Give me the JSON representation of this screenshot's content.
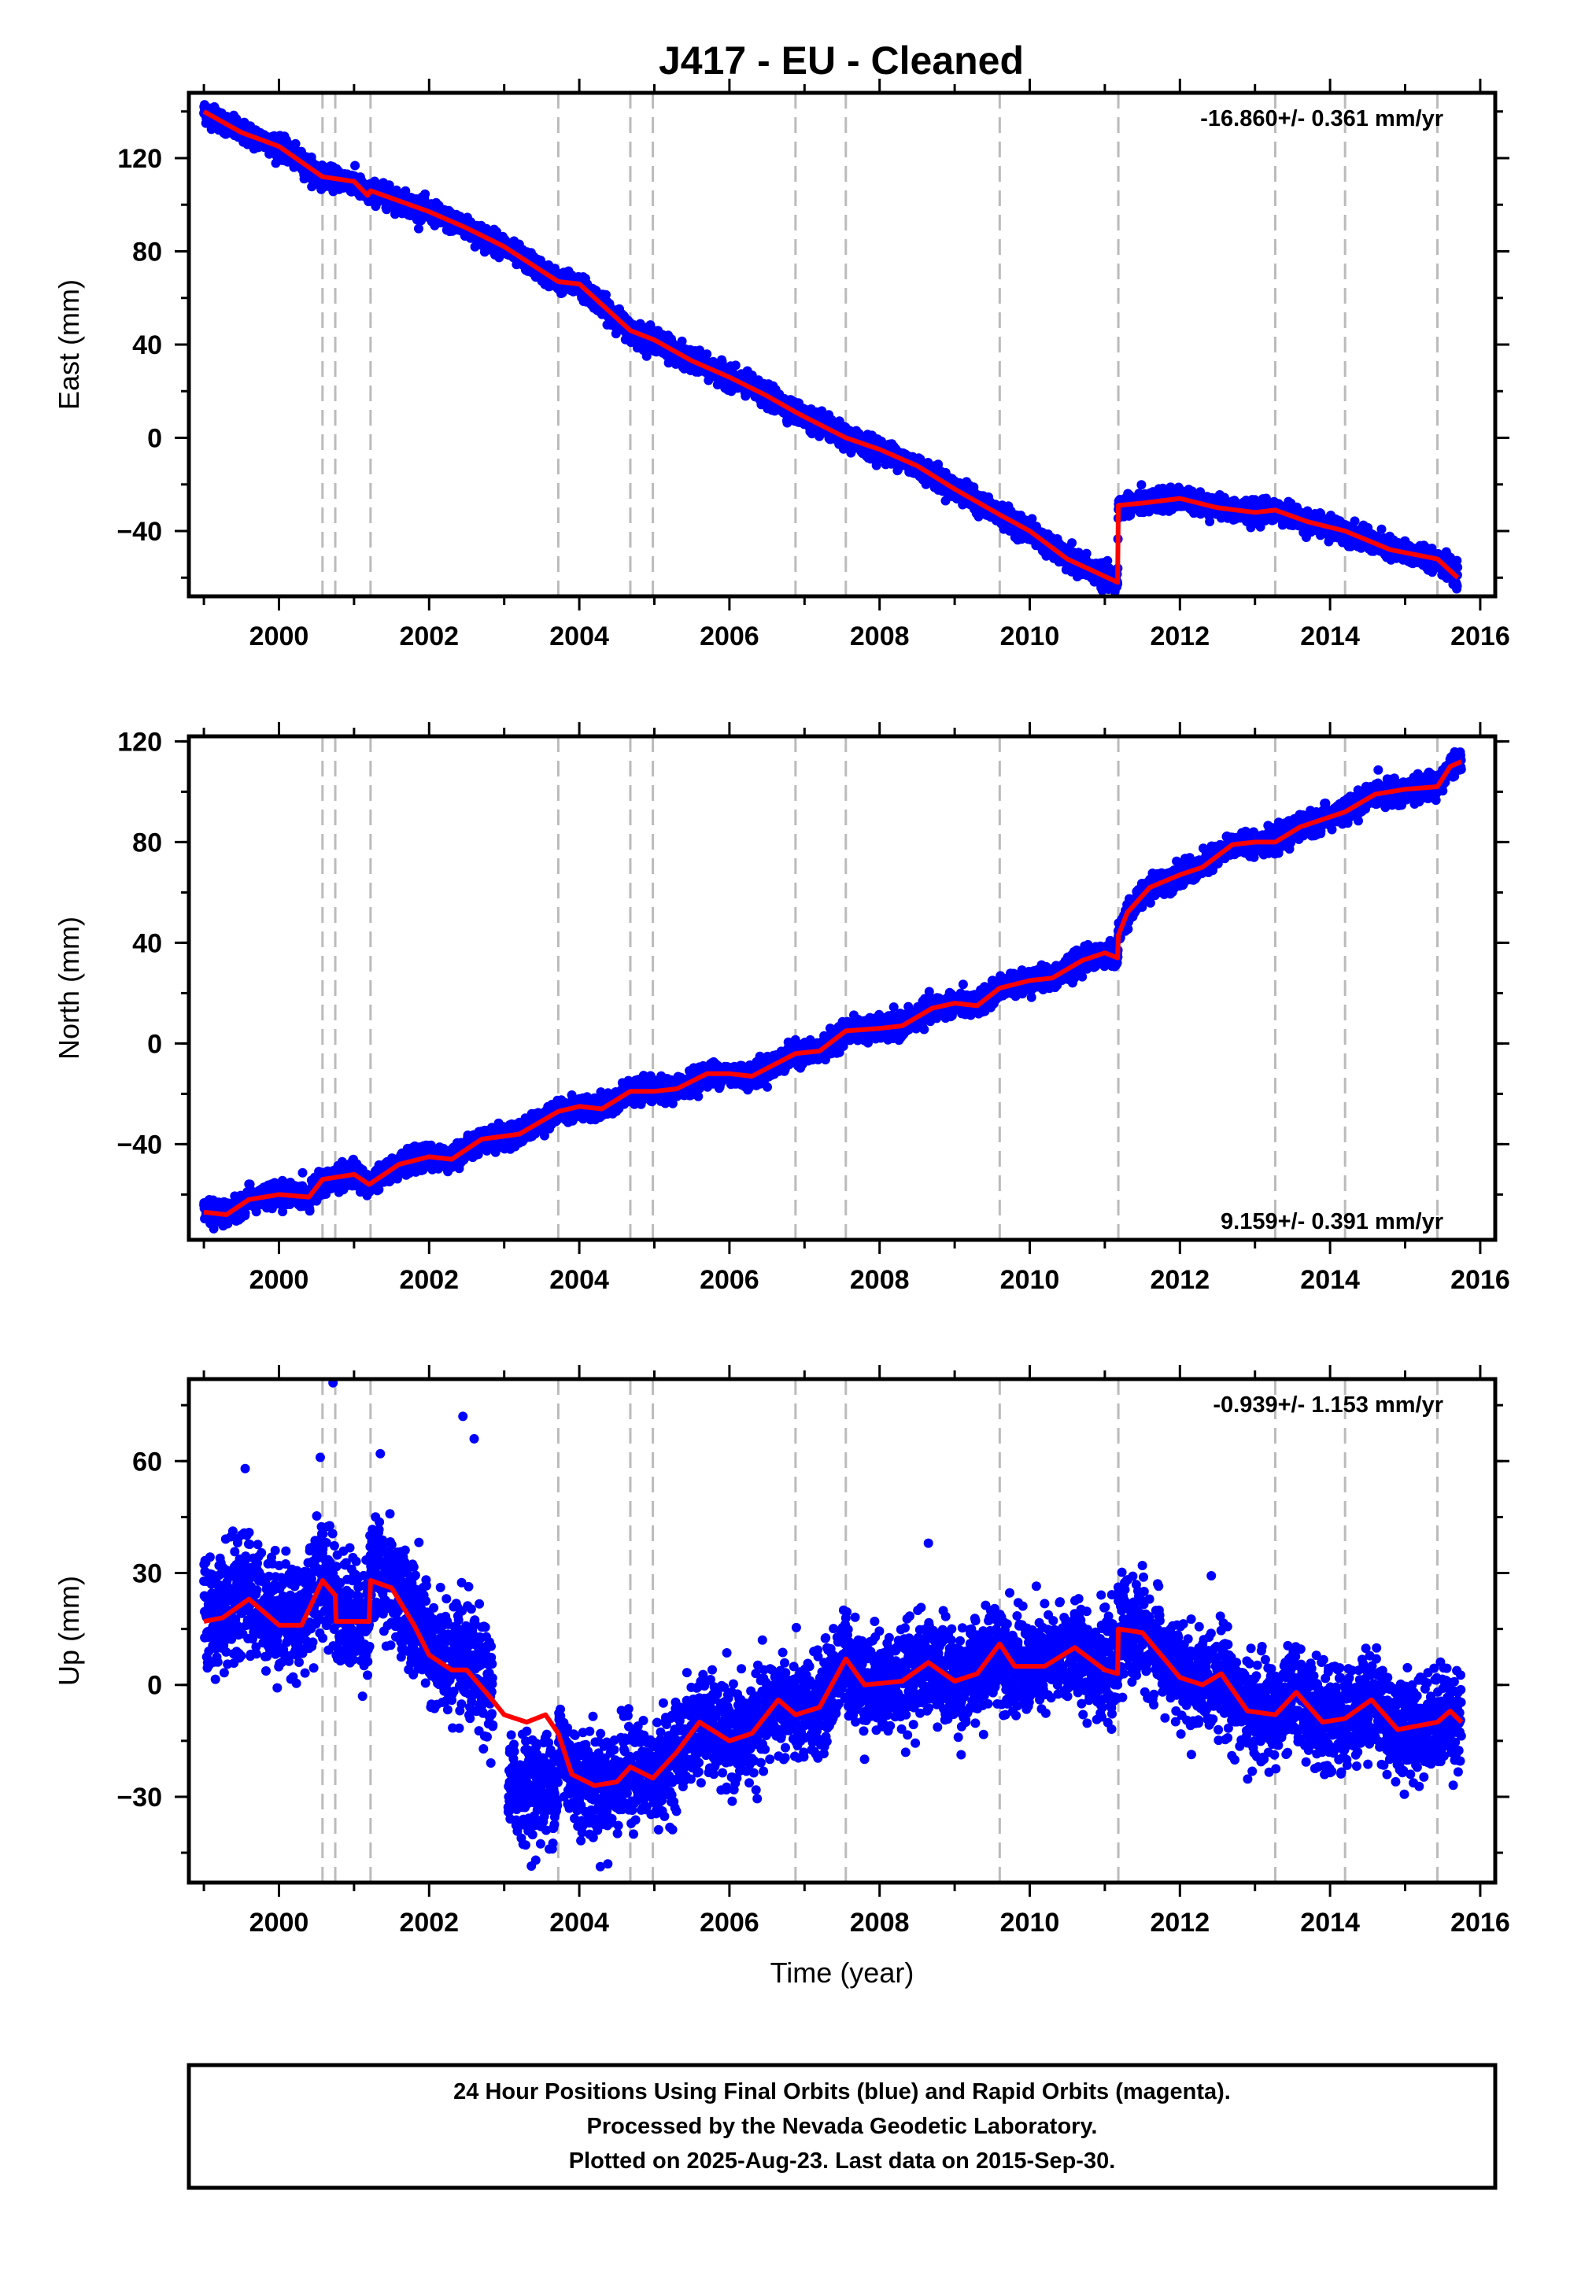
{
  "title": "J417  - EU - Cleaned",
  "footer": {
    "lines": [
      "24 Hour Positions Using Final Orbits (blue) and Rapid Orbits (magenta).",
      "Processed by the Nevada Geodetic Laboratory.",
      "Plotted on 2025-Aug-23. Last data on 2015-Sep-30."
    ]
  },
  "colors": {
    "data": "#0000ff",
    "model": "#ff0000",
    "events": "#bbbbbb",
    "frame": "#000000"
  },
  "chart_data": [
    {
      "type": "scatter",
      "component": "east",
      "ylabel": "East (mm)",
      "xlabel": "",
      "rate": "-16.860+/- 0.361 mm/yr",
      "rate_position": "top-right",
      "xlim": [
        1998.8,
        2016.2
      ],
      "ylim": [
        -68,
        148
      ],
      "yticks": [
        -40,
        0,
        40,
        80,
        120
      ],
      "xticks": [
        2000,
        2002,
        2004,
        2006,
        2008,
        2010,
        2012,
        2014,
        2016
      ],
      "event_lines": [
        2000.58,
        2000.75,
        2001.22,
        2003.72,
        2004.68,
        2004.98,
        2006.88,
        2007.55,
        2009.6,
        2011.18,
        2013.27,
        2014.2,
        2015.43
      ],
      "model": [
        [
          1999.0,
          140
        ],
        [
          1999.5,
          131
        ],
        [
          2000.0,
          125
        ],
        [
          2000.58,
          112
        ],
        [
          2001.0,
          110
        ],
        [
          2001.18,
          104
        ],
        [
          2001.22,
          106
        ],
        [
          2002.0,
          97
        ],
        [
          2002.5,
          90
        ],
        [
          2003.0,
          82
        ],
        [
          2003.72,
          67
        ],
        [
          2004.0,
          66
        ],
        [
          2004.68,
          46
        ],
        [
          2005.0,
          42
        ],
        [
          2005.5,
          33
        ],
        [
          2006.0,
          26
        ],
        [
          2006.5,
          18
        ],
        [
          2006.88,
          11
        ],
        [
          2007.0,
          9
        ],
        [
          2007.55,
          0
        ],
        [
          2008.0,
          -5
        ],
        [
          2008.5,
          -12
        ],
        [
          2009.0,
          -22
        ],
        [
          2009.6,
          -33
        ],
        [
          2010.0,
          -40
        ],
        [
          2010.5,
          -52
        ],
        [
          2011.17,
          -62
        ],
        [
          2011.18,
          -29
        ],
        [
          2011.5,
          -28
        ],
        [
          2012.0,
          -26
        ],
        [
          2012.5,
          -30
        ],
        [
          2013.0,
          -32
        ],
        [
          2013.27,
          -31
        ],
        [
          2013.7,
          -36
        ],
        [
          2014.2,
          -40
        ],
        [
          2014.8,
          -48
        ],
        [
          2015.43,
          -52
        ],
        [
          2015.7,
          -60
        ]
      ],
      "scatter": 2.2,
      "outlier_seeds": []
    },
    {
      "type": "scatter",
      "component": "north",
      "ylabel": "North (mm)",
      "xlabel": "",
      "rate": "9.159+/- 0.391 mm/yr",
      "rate_position": "bottom-right",
      "xlim": [
        1998.8,
        2016.2
      ],
      "ylim": [
        -78,
        122
      ],
      "yticks": [
        -40,
        0,
        40,
        80,
        120
      ],
      "xticks": [
        2000,
        2002,
        2004,
        2006,
        2008,
        2010,
        2012,
        2014,
        2016
      ],
      "event_lines": [
        2000.58,
        2000.75,
        2001.22,
        2003.72,
        2004.68,
        2004.98,
        2006.88,
        2007.55,
        2009.6,
        2011.18,
        2013.27,
        2014.2,
        2015.43
      ],
      "model": [
        [
          1999.0,
          -67
        ],
        [
          1999.3,
          -68
        ],
        [
          1999.6,
          -62
        ],
        [
          2000.0,
          -60
        ],
        [
          2000.4,
          -61
        ],
        [
          2000.58,
          -54
        ],
        [
          2001.0,
          -52
        ],
        [
          2001.2,
          -56
        ],
        [
          2001.6,
          -48
        ],
        [
          2002.0,
          -45
        ],
        [
          2002.3,
          -46
        ],
        [
          2002.7,
          -38
        ],
        [
          2003.2,
          -36
        ],
        [
          2003.72,
          -27
        ],
        [
          2004.0,
          -25
        ],
        [
          2004.3,
          -26
        ],
        [
          2004.68,
          -19
        ],
        [
          2005.0,
          -19
        ],
        [
          2005.3,
          -18
        ],
        [
          2005.7,
          -12
        ],
        [
          2006.0,
          -12
        ],
        [
          2006.3,
          -13
        ],
        [
          2006.88,
          -4
        ],
        [
          2007.2,
          -3
        ],
        [
          2007.55,
          5
        ],
        [
          2008.0,
          6
        ],
        [
          2008.3,
          7
        ],
        [
          2008.7,
          14
        ],
        [
          2009.0,
          16
        ],
        [
          2009.3,
          15
        ],
        [
          2009.6,
          22
        ],
        [
          2010.0,
          25
        ],
        [
          2010.3,
          26
        ],
        [
          2010.7,
          33
        ],
        [
          2011.0,
          36
        ],
        [
          2011.17,
          34
        ],
        [
          2011.18,
          43
        ],
        [
          2011.3,
          52
        ],
        [
          2011.6,
          62
        ],
        [
          2012.0,
          67
        ],
        [
          2012.3,
          70
        ],
        [
          2012.7,
          79
        ],
        [
          2013.0,
          80
        ],
        [
          2013.27,
          80
        ],
        [
          2013.6,
          86
        ],
        [
          2014.2,
          92
        ],
        [
          2014.6,
          99
        ],
        [
          2015.0,
          101
        ],
        [
          2015.43,
          102
        ],
        [
          2015.6,
          110
        ],
        [
          2015.75,
          112
        ]
      ],
      "scatter": 2.2,
      "outlier_seeds": []
    },
    {
      "type": "scatter",
      "component": "up",
      "ylabel": "Up (mm)",
      "xlabel": "Time (year)",
      "rate": "-0.939+/- 1.153 mm/yr",
      "rate_position": "top-right",
      "xlim": [
        1998.8,
        2016.2
      ],
      "ylim": [
        -53,
        82
      ],
      "yticks": [
        -30,
        0,
        30,
        60
      ],
      "xticks": [
        2000,
        2002,
        2004,
        2006,
        2008,
        2010,
        2012,
        2014,
        2016
      ],
      "event_lines": [
        2000.58,
        2000.75,
        2001.22,
        2003.72,
        2004.68,
        2004.98,
        2006.88,
        2007.55,
        2009.6,
        2011.18,
        2013.27,
        2014.2,
        2015.43
      ],
      "model": [
        [
          1999.0,
          17
        ],
        [
          1999.25,
          18
        ],
        [
          1999.6,
          23
        ],
        [
          2000.0,
          16
        ],
        [
          2000.3,
          16
        ],
        [
          2000.58,
          28
        ],
        [
          2000.75,
          24
        ],
        [
          2000.76,
          17
        ],
        [
          2001.2,
          17
        ],
        [
          2001.22,
          28
        ],
        [
          2001.5,
          26
        ],
        [
          2001.8,
          16
        ],
        [
          2002.0,
          8
        ],
        [
          2002.3,
          4
        ],
        [
          2002.5,
          4
        ],
        [
          2002.8,
          -3
        ],
        [
          2003.0,
          -8
        ],
        [
          2003.3,
          -10
        ],
        [
          2003.55,
          -8
        ],
        [
          2003.72,
          -13
        ],
        [
          2003.9,
          -24
        ],
        [
          2004.2,
          -27
        ],
        [
          2004.5,
          -26
        ],
        [
          2004.68,
          -22
        ],
        [
          2004.98,
          -25
        ],
        [
          2005.3,
          -18
        ],
        [
          2005.6,
          -10
        ],
        [
          2006.0,
          -15
        ],
        [
          2006.3,
          -13
        ],
        [
          2006.65,
          -4
        ],
        [
          2006.88,
          -8
        ],
        [
          2007.2,
          -6
        ],
        [
          2007.55,
          7
        ],
        [
          2007.8,
          0
        ],
        [
          2008.3,
          1
        ],
        [
          2008.65,
          6
        ],
        [
          2009.0,
          1
        ],
        [
          2009.3,
          3
        ],
        [
          2009.6,
          11
        ],
        [
          2009.8,
          5
        ],
        [
          2010.2,
          5
        ],
        [
          2010.6,
          10
        ],
        [
          2011.0,
          4
        ],
        [
          2011.17,
          3
        ],
        [
          2011.18,
          15
        ],
        [
          2011.5,
          14
        ],
        [
          2012.0,
          2
        ],
        [
          2012.3,
          0
        ],
        [
          2012.55,
          3
        ],
        [
          2012.9,
          -7
        ],
        [
          2013.27,
          -8
        ],
        [
          2013.55,
          -2
        ],
        [
          2013.9,
          -10
        ],
        [
          2014.2,
          -9
        ],
        [
          2014.55,
          -4
        ],
        [
          2014.9,
          -12
        ],
        [
          2015.43,
          -10
        ],
        [
          2015.6,
          -7
        ],
        [
          2015.75,
          -10
        ]
      ],
      "scatter": 6.5,
      "outlier_seeds": [
        [
          2000.72,
          81
        ],
        [
          2001.35,
          62
        ],
        [
          2002.45,
          72
        ],
        [
          2002.6,
          66
        ],
        [
          2000.55,
          61
        ],
        [
          1999.55,
          58
        ],
        [
          2008.65,
          38
        ],
        [
          2011.5,
          32
        ],
        [
          2003.42,
          -47
        ],
        [
          2004.38,
          -48
        ],
        [
          2003.6,
          -44
        ]
      ]
    }
  ]
}
